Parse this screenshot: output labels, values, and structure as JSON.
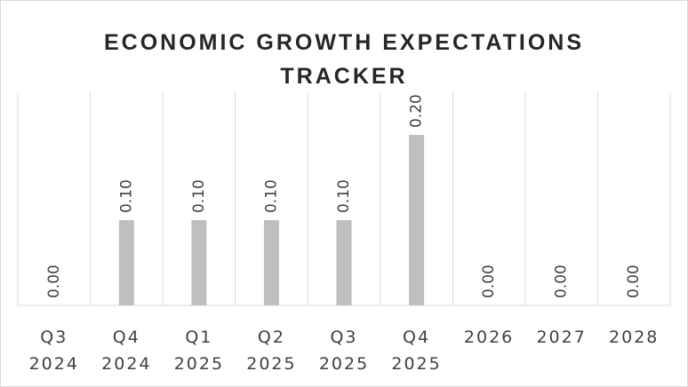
{
  "chart_data": {
    "type": "bar",
    "title": "ECONOMIC GROWTH EXPECTATIONS TRACKER",
    "categories": [
      "Q3 2024",
      "Q4 2024",
      "Q1 2025",
      "Q2 2025",
      "Q3 2025",
      "Q4 2025",
      "2026",
      "2027",
      "2028"
    ],
    "values": [
      0,
      0.1,
      0.1,
      0.1,
      0.1,
      0.2,
      0,
      0,
      0
    ],
    "value_labels": [
      "0.00",
      "0.10",
      "0.10",
      "0.10",
      "0.10",
      "0.20",
      "0.00",
      "0.00",
      "0.00"
    ],
    "color": "#bfbfbf",
    "ylim": [
      0,
      0.25
    ],
    "grid": true
  }
}
